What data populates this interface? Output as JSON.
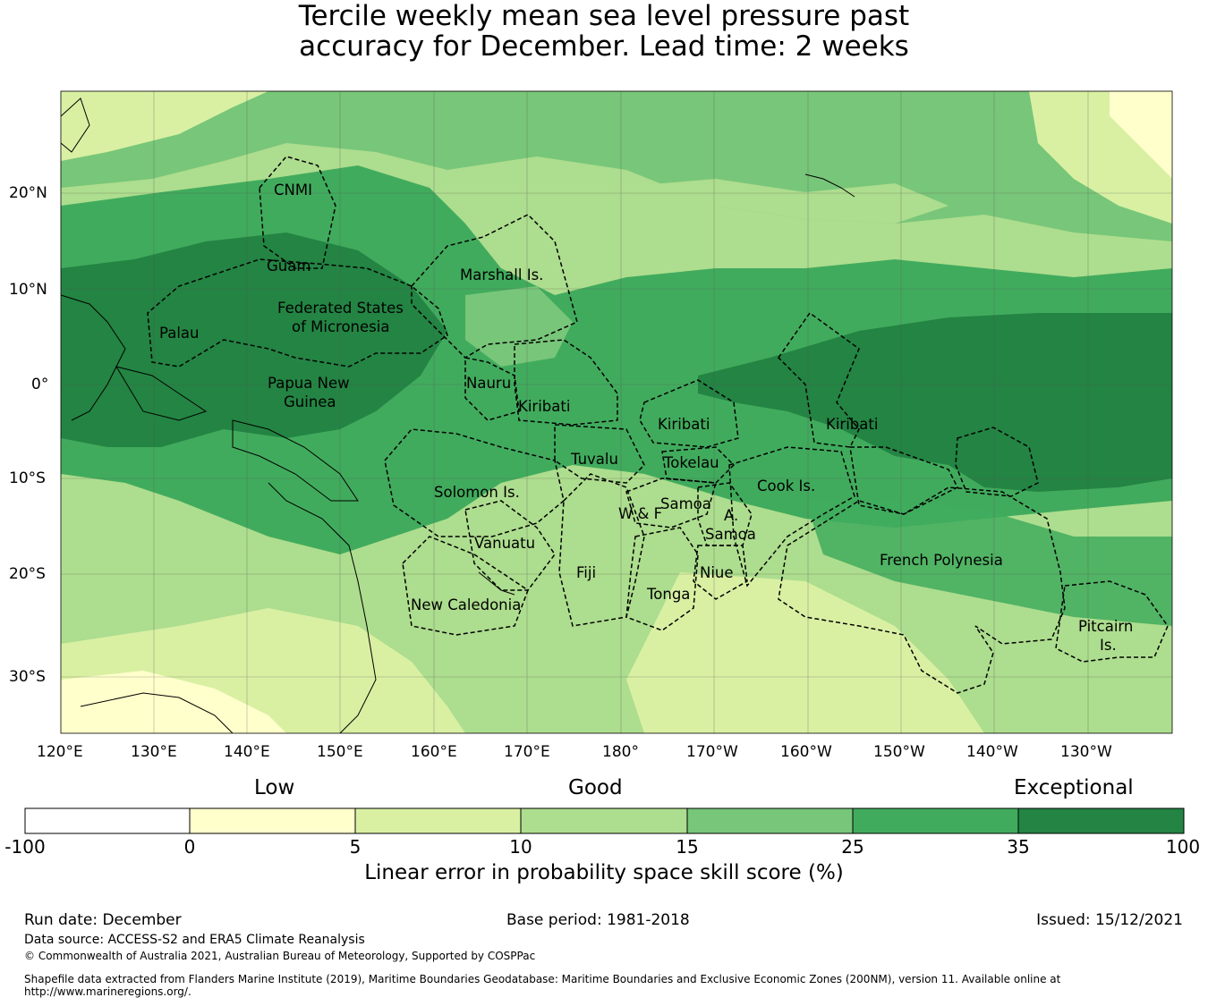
{
  "title": {
    "line1": "Tercile weekly mean sea level pressure past",
    "line2": "accuracy for December. Lead time: 2 weeks"
  },
  "map": {
    "lon_ticks": [
      "120°E",
      "130°E",
      "140°E",
      "150°E",
      "160°E",
      "170°E",
      "180°",
      "170°W",
      "160°W",
      "150°W",
      "140°W",
      "130°W"
    ],
    "lat_ticks": [
      "20°N",
      "10°N",
      "0°",
      "10°S",
      "20°S",
      "30°S"
    ],
    "regions": [
      {
        "name": "CNMI"
      },
      {
        "name": "Guam"
      },
      {
        "name": "Marshall Is."
      },
      {
        "name": "Federated States"
      },
      {
        "name": "of Micronesia"
      },
      {
        "name": "Palau"
      },
      {
        "name": "Papua New"
      },
      {
        "name": "Guinea"
      },
      {
        "name": "Nauru"
      },
      {
        "name": "Kiribati"
      },
      {
        "name": "Kiribati"
      },
      {
        "name": "Kiribati"
      },
      {
        "name": "Tuvalu"
      },
      {
        "name": "Tokelau"
      },
      {
        "name": "Solomon Is."
      },
      {
        "name": "Samoa"
      },
      {
        "name": "W & F"
      },
      {
        "name": "A."
      },
      {
        "name": "Samoa"
      },
      {
        "name": "Cook Is."
      },
      {
        "name": "Vanuatu"
      },
      {
        "name": "Fiji"
      },
      {
        "name": "Niue"
      },
      {
        "name": "Tonga"
      },
      {
        "name": "French Polynesia"
      },
      {
        "name": "New Caledonia"
      },
      {
        "name": "Pitcairn"
      },
      {
        "name": "Is."
      }
    ]
  },
  "colorbar": {
    "category_labels": [
      "Low",
      "Good",
      "Exceptional"
    ],
    "ticks": [
      "-100",
      "0",
      "5",
      "10",
      "15",
      "25",
      "35",
      "100"
    ],
    "colors": [
      "#ffffff",
      "#ffffcc",
      "#d9f0a3",
      "#addd8e",
      "#78c679",
      "#41ab5d",
      "#238443"
    ],
    "label": "Linear error in probability space skill score (%)"
  },
  "footer": {
    "run_date": "Run date: December",
    "base_period": "Base period: 1981-2018",
    "issued": "Issued: 15/12/2021",
    "data_source": "Data source: ACCESS-S2 and ERA5 Climate Reanalysis",
    "copyright": "© Commonwealth of Australia 2021, Australian Bureau of Meteorology, Supported by COSPPac",
    "shapefile_line1": "Shapefile data extracted from Flanders Marine Institute (2019), Maritime Boundaries Geodatabase: Maritime Boundaries and Exclusive Economic Zones (200NM), version 11. Available online at",
    "shapefile_line2": "http://www.marineregions.org/."
  }
}
